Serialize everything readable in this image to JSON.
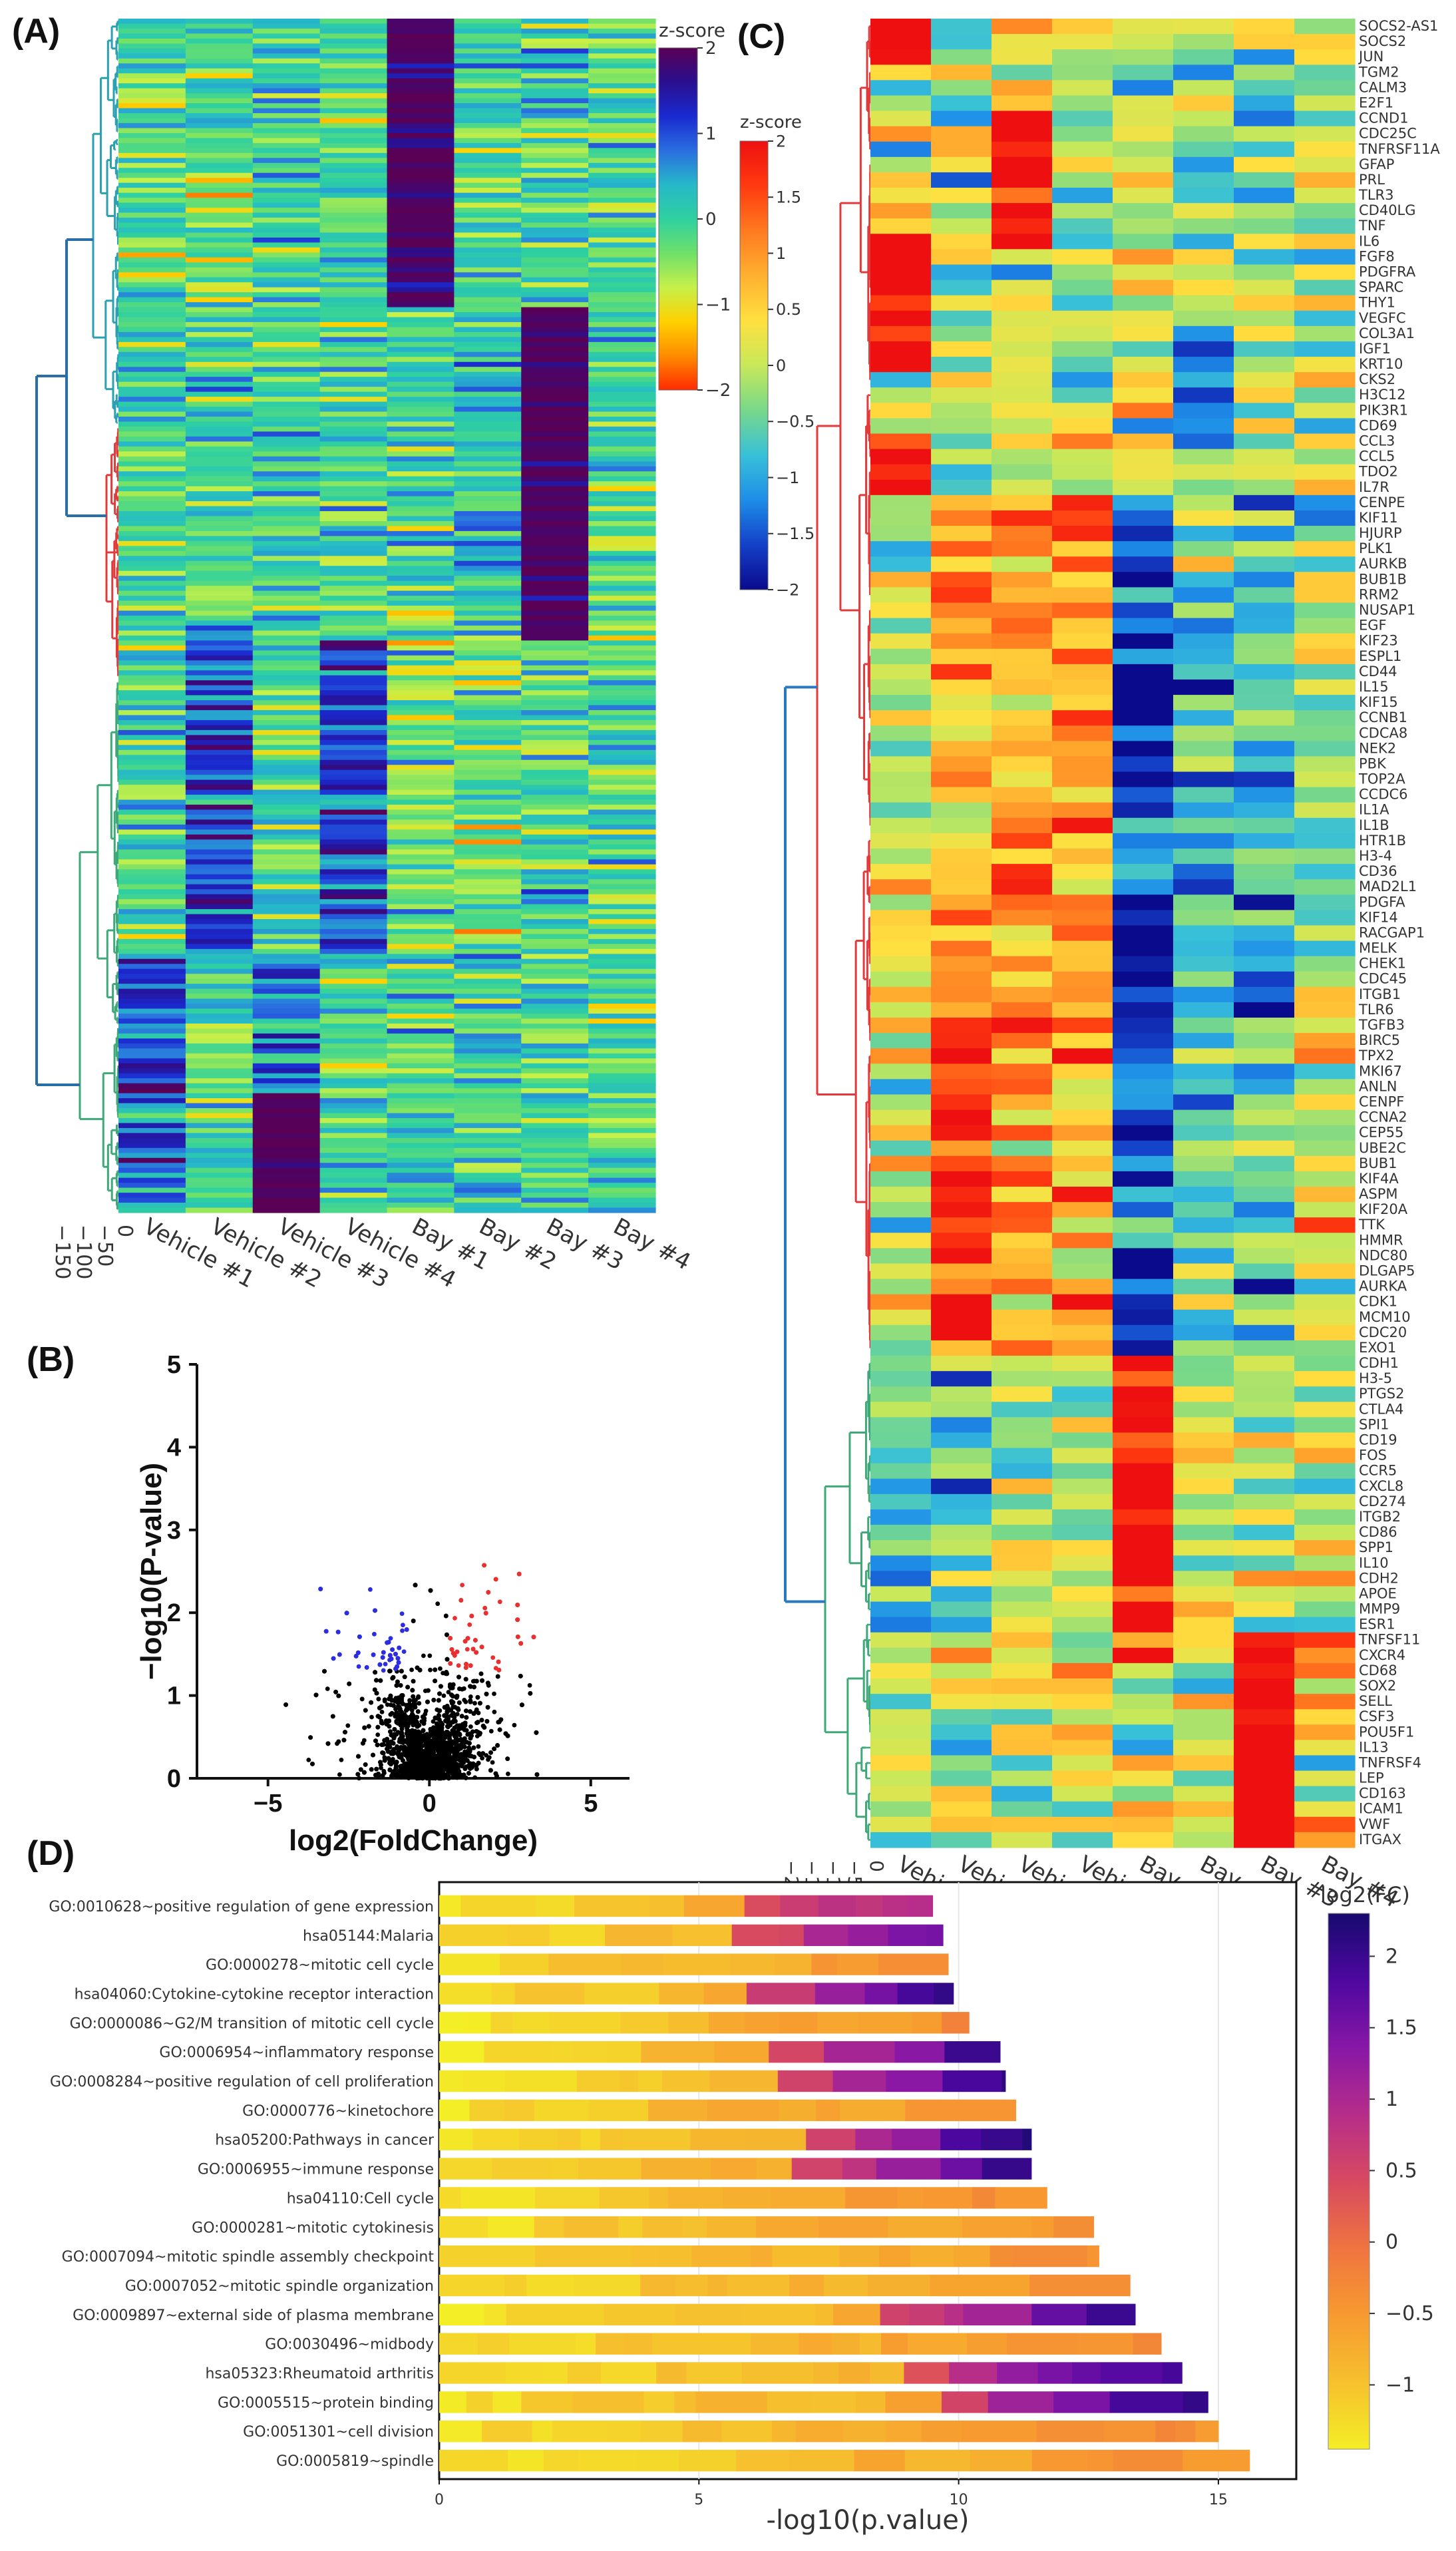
{
  "colors": {
    "heatA": [
      "#ff2a00",
      "#ff8c00",
      "#ffd000",
      "#c6f04a",
      "#6fe06a",
      "#2fd0a0",
      "#26b8c8",
      "#2a6ee0",
      "#1a2ad0",
      "#2a0f8f",
      "#5a0055"
    ],
    "heatC": [
      "#0a0a8c",
      "#1440c8",
      "#1e8ee8",
      "#38c0d8",
      "#78d88a",
      "#c8e85a",
      "#ffe040",
      "#ffb030",
      "#ff7a20",
      "#ff3a10",
      "#ee1010"
    ],
    "barScale": [
      "#f4ee26",
      "#f6c02e",
      "#f79a30",
      "#ef7440",
      "#d84a60",
      "#b62d8a",
      "#8717a6",
      "#4e08a0",
      "#170a6e"
    ],
    "volcanoUp": "#e83030",
    "volcanoDown": "#2c2ce0",
    "volcanoNs": "#000000",
    "dendroA": "#2a6ea8",
    "dendroRed": "#e23a3a",
    "dendroGreen": "#3ea878",
    "dendroBlue": "#2a78c0"
  },
  "chart_data": [
    {
      "panel": "(A)",
      "type": "heatmap",
      "samples": [
        "Vehicle #1",
        "Vehicle #2",
        "Vehicle #3",
        "Vehicle #4",
        "Bay #1",
        "Bay #2",
        "Bay #3",
        "Bay #4"
      ],
      "colorbar_title": "z-score",
      "colorbar_ticks": [
        "2",
        "1",
        "0",
        "−1",
        "−2"
      ],
      "colorbar_range": [
        -2,
        2
      ],
      "dendrogram_ticks": [
        "0",
        "−50",
        "−100",
        "−150"
      ],
      "row_clusters": [
        "top block high in Bay #1",
        "middle block high in Bay #3",
        "bottom block high in Vehicle samples"
      ]
    },
    {
      "panel": "(B)",
      "type": "scatter",
      "xlabel": "log2(FoldChange)",
      "ylabel": "−log10(P-value)",
      "xticks": [
        "−5",
        "0",
        "5"
      ],
      "yticks": [
        "0",
        "1",
        "2",
        "3",
        "4",
        "5"
      ],
      "xlim": [
        -7.2,
        6.2
      ],
      "ylim": [
        0,
        5
      ],
      "fold_change_cutoff": 0.58,
      "pvalue_cutoff_neglog10": 1.3
    },
    {
      "panel": "(C)",
      "type": "heatmap",
      "samples": [
        "Vehicle #1",
        "Vehicle #2",
        "Vehicle #3",
        "Vehicle #4",
        "Bay #1",
        "Bay #2",
        "Bay #3",
        "Bay #4"
      ],
      "colorbar_title": "z-score",
      "colorbar_ticks": [
        "2",
        "1.5",
        "1",
        "0.5",
        "0",
        "−0.5",
        "−1",
        "−1.5",
        "−2"
      ],
      "colorbar_range": [
        -2,
        2
      ],
      "dendrogram_ticks": [
        "0",
        "−5",
        "−10",
        "−15",
        "−20"
      ],
      "genes": [
        "SOCS2-AS1",
        "SOCS2",
        "JUN",
        "TGM2",
        "CALM3",
        "E2F1",
        "CCND1",
        "CDC25C",
        "TNFRSF11A",
        "GFAP",
        "PRL",
        "TLR3",
        "CD40LG",
        "TNF",
        "IL6",
        "FGF8",
        "PDGFRA",
        "SPARC",
        "THY1",
        "VEGFC",
        "COL3A1",
        "IGF1",
        "KRT10",
        "CKS2",
        "H3C12",
        "PIK3R1",
        "CD69",
        "CCL3",
        "CCL5",
        "TDO2",
        "IL7R",
        "CENPE",
        "KIF11",
        "HJURP",
        "PLK1",
        "AURKB",
        "BUB1B",
        "RRM2",
        "NUSAP1",
        "EGF",
        "KIF23",
        "ESPL1",
        "CD44",
        "IL15",
        "KIF15",
        "CCNB1",
        "CDCA8",
        "NEK2",
        "PBK",
        "TOP2A",
        "CCDC6",
        "IL1A",
        "IL1B",
        "HTR1B",
        "H3-4",
        "CD36",
        "MAD2L1",
        "PDGFA",
        "KIF14",
        "RACGAP1",
        "MELK",
        "CHEK1",
        "CDC45",
        "ITGB1",
        "TLR6",
        "TGFB3",
        "BIRC5",
        "TPX2",
        "MKI67",
        "ANLN",
        "CENPF",
        "CCNA2",
        "CEP55",
        "UBE2C",
        "BUB1",
        "KIF4A",
        "ASPM",
        "KIF20A",
        "TTK",
        "HMMR",
        "NDC80",
        "DLGAP5",
        "AURKA",
        "CDK1",
        "MCM10",
        "CDC20",
        "EXO1",
        "CDH1",
        "H3-5",
        "PTGS2",
        "CTLA4",
        "SPI1",
        "CD19",
        "FOS",
        "CCR5",
        "CXCL8",
        "CD274",
        "ITGB2",
        "CD86",
        "SPP1",
        "IL10",
        "CDH2",
        "APOE",
        "MMP9",
        "ESR1",
        "TNFSF11",
        "CXCR4",
        "CD68",
        "SOX2",
        "SELL",
        "CSF3",
        "POU5F1",
        "IL13",
        "TNFRSF4",
        "LEP",
        "CD163",
        "ICAM1",
        "VWF",
        "ITGAX"
      ],
      "clusters": [
        {
          "name": "cluster 1",
          "from": "SOCS2-AS1",
          "to": "IL7R",
          "high_in": [
            "Vehicle #1",
            "Vehicle #3"
          ]
        },
        {
          "name": "cluster 2",
          "from": "CENPE",
          "to": "EXO1",
          "high_in": [
            "Vehicle #2",
            "Vehicle #3",
            "Vehicle #4"
          ]
        },
        {
          "name": "cluster 3",
          "from": "CDH1",
          "to": "ESR1",
          "high_in": [
            "Bay #1"
          ]
        },
        {
          "name": "cluster 4",
          "from": "TNFSF11",
          "to": "ITGAX",
          "high_in": [
            "Bay #3"
          ]
        }
      ]
    },
    {
      "panel": "(D)",
      "type": "bar",
      "orientation": "horizontal",
      "xlabel": "-log10(p.value)",
      "xticks": [
        "0",
        "5",
        "10",
        "15"
      ],
      "xlim": [
        0,
        16.5
      ],
      "colorbar_title": "log2(FC)",
      "colorbar_ticks": [
        "2",
        "1.5",
        "1",
        "0.5",
        "0",
        "−0.5",
        "−1"
      ],
      "colorbar_range": [
        -1.45,
        2.3
      ],
      "categories": [
        "GO:0010628~positive regulation of gene expression",
        "hsa05144:Malaria",
        "GO:0000278~mitotic cell cycle",
        "hsa04060:Cytokine-cytokine receptor interaction",
        "GO:0000086~G2/M transition of mitotic cell cycle",
        "GO:0006954~inflammatory response",
        "GO:0008284~positive regulation of cell proliferation",
        "GO:0000776~kinetochore",
        "hsa05200:Pathways in cancer",
        "GO:0006955~immune response",
        "hsa04110:Cell cycle",
        "GO:0000281~mitotic cytokinesis",
        "GO:0007094~mitotic spindle assembly checkpoint",
        "GO:0007052~mitotic spindle organization",
        "GO:0009897~external side of plasma membrane",
        "GO:0030496~midbody",
        "hsa05323:Rheumatoid arthritis",
        "GO:0005515~protein binding",
        "GO:0051301~cell division",
        "GO:0005819~spindle"
      ],
      "values": [
        9.5,
        9.7,
        9.8,
        9.9,
        10.2,
        10.8,
        10.9,
        11.1,
        11.4,
        11.4,
        11.7,
        12.6,
        12.7,
        13.3,
        13.4,
        13.9,
        14.3,
        14.8,
        15.0,
        15.6
      ],
      "max_log2fc_per_term": [
        0.95,
        1.6,
        -0.4,
        2.0,
        -0.35,
        1.9,
        2.0,
        -0.6,
        2.1,
        2.1,
        -0.3,
        -0.2,
        -0.3,
        -0.3,
        1.9,
        -0.3,
        2.0,
        2.1,
        -0.3,
        -0.2
      ]
    }
  ]
}
